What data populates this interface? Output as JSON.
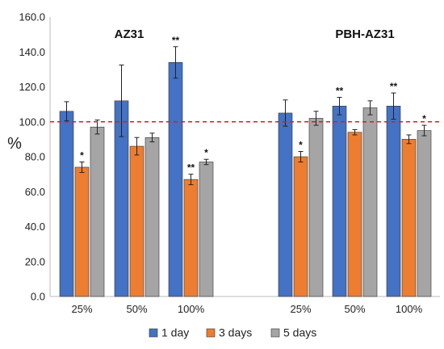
{
  "chart_data": {
    "type": "bar",
    "ylabel": "%",
    "ylim": [
      0,
      160
    ],
    "yticks": [
      "0.0",
      "20.0",
      "40.0",
      "60.0",
      "80.0",
      "100.0",
      "120.0",
      "140.0",
      "160.0"
    ],
    "reference_line": {
      "y": 100,
      "color": "#cc2222",
      "style": "dashed"
    },
    "groups": [
      {
        "title": "AZ31",
        "categories": [
          "25%",
          "50%",
          "100%"
        ]
      },
      {
        "title": "PBH-AZ31",
        "categories": [
          "25%",
          "50%",
          "100%"
        ]
      }
    ],
    "series": [
      {
        "name": "1 day",
        "color": "#4472c4",
        "values": [
          [
            106,
            112,
            134
          ],
          [
            105,
            109,
            109
          ]
        ],
        "errors": [
          [
            5.5,
            20.5,
            9
          ],
          [
            7.5,
            5,
            7.5
          ]
        ],
        "significance": [
          [
            "",
            "",
            "**"
          ],
          [
            "",
            "**",
            "**"
          ]
        ]
      },
      {
        "name": "3 days",
        "color": "#ed7d31",
        "values": [
          [
            74,
            86,
            67
          ],
          [
            80,
            94,
            90
          ]
        ],
        "errors": [
          [
            3,
            5,
            3
          ],
          [
            3,
            1.5,
            2.5
          ]
        ],
        "significance": [
          [
            "*",
            "",
            "**"
          ],
          [
            "*",
            "",
            ""
          ]
        ]
      },
      {
        "name": "5 days",
        "color": "#a5a5a5",
        "values": [
          [
            97,
            91,
            77
          ],
          [
            102,
            108,
            95
          ]
        ],
        "errors": [
          [
            4,
            2.5,
            1.5
          ],
          [
            4,
            4,
            3
          ]
        ],
        "significance": [
          [
            "",
            "",
            "*"
          ],
          [
            "",
            "",
            "*"
          ]
        ]
      }
    ],
    "legend_position": "bottom",
    "grid": false
  }
}
